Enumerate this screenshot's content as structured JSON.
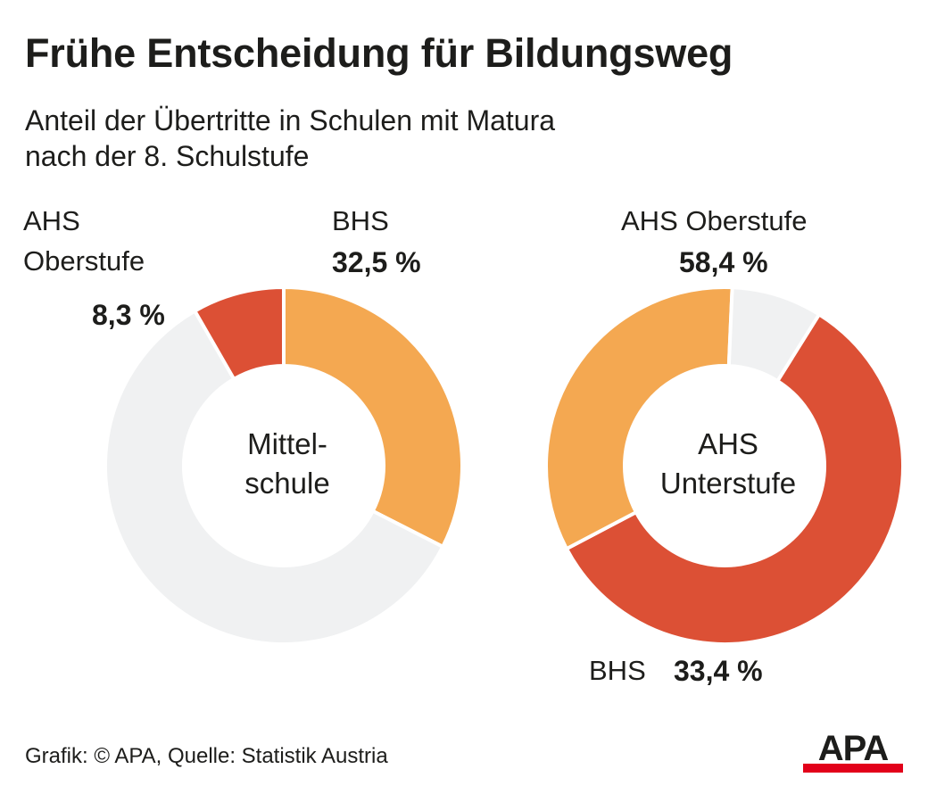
{
  "title": "Frühe Entscheidung für Bildungsweg",
  "subtitle_lines": [
    "Anteil der Übertritte in Schulen mit Matura",
    "nach der 8. Schulstufe"
  ],
  "source": "Grafik: © APA, Quelle: Statistik Austria",
  "logo_text": "APA",
  "colors": {
    "ahs": "#dc5035",
    "bhs": "#f4a851",
    "rest": "#f0f1f2",
    "logo_red": "#e2001a"
  },
  "chart_data": [
    {
      "type": "pie",
      "center_label": [
        "Mittel-",
        "schule"
      ],
      "slices": [
        {
          "key": "bhs",
          "label": "BHS",
          "value": 32.5,
          "value_label": "32,5 %"
        },
        {
          "key": "rest",
          "label": "",
          "value": 59.2,
          "value_label": ""
        },
        {
          "key": "ahs",
          "label_lines": [
            "AHS",
            "Oberstufe"
          ],
          "value": 8.3,
          "value_label": "8,3 %"
        }
      ]
    },
    {
      "type": "pie",
      "center_label": [
        "AHS",
        "Unterstufe"
      ],
      "slices": [
        {
          "key": "ahs",
          "label": "AHS Oberstufe",
          "value": 58.4,
          "value_label": "58,4 %"
        },
        {
          "key": "bhs",
          "label": "BHS",
          "value": 33.4,
          "value_label": "33,4 %"
        },
        {
          "key": "rest",
          "label": "",
          "value": 8.2,
          "value_label": ""
        }
      ]
    }
  ]
}
